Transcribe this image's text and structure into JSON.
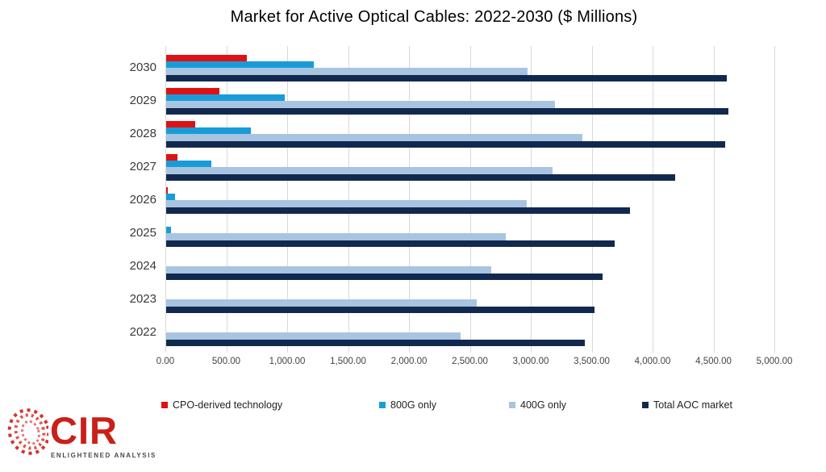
{
  "title": "Market for Active Optical Cables: 2022-2030 ($ Millions)",
  "chart_data": {
    "type": "bar",
    "orientation": "horizontal",
    "note": "categories listed top to bottom as displayed; values in $ Millions, estimated from bar lengths",
    "categories": [
      "2030",
      "2029",
      "2028",
      "2027",
      "2026",
      "2025",
      "2024",
      "2023",
      "2022"
    ],
    "series": [
      {
        "name": "CPO-derived technology",
        "color": "#e01112",
        "values": [
          660,
          435,
          240,
          95,
          15,
          0,
          0,
          0,
          0
        ]
      },
      {
        "name": "800G only",
        "color": "#189cd8",
        "values": [
          1210,
          975,
          695,
          370,
          75,
          40,
          0,
          0,
          0
        ]
      },
      {
        "name": "400G only",
        "color": "#a9c4e1",
        "values": [
          2970,
          3190,
          3420,
          3170,
          2960,
          2790,
          2670,
          2550,
          2420
        ]
      },
      {
        "name": "Total AOC market",
        "color": "#12294f",
        "values": [
          4600,
          4615,
          4590,
          4180,
          3810,
          3680,
          3580,
          3515,
          3440
        ]
      }
    ],
    "xlim": [
      0,
      5000
    ],
    "x_ticks": [
      "0.00",
      "500.00",
      "1,000.00",
      "1,500.00",
      "2,000.00",
      "2,500.00",
      "3,000.00",
      "3,500.00",
      "4,000.00",
      "4,500.00",
      "5,000.00"
    ],
    "gridlines": "vertical-only",
    "gridline_color": "#d9d9d9",
    "legend_position": "bottom"
  },
  "legend_swatch_color_note": "legend built from chart_data.series names and colors",
  "logo": {
    "name": "CIR",
    "tagline": "ENLIGHTENED ANALYSIS",
    "accent_color": "#c9201a"
  }
}
